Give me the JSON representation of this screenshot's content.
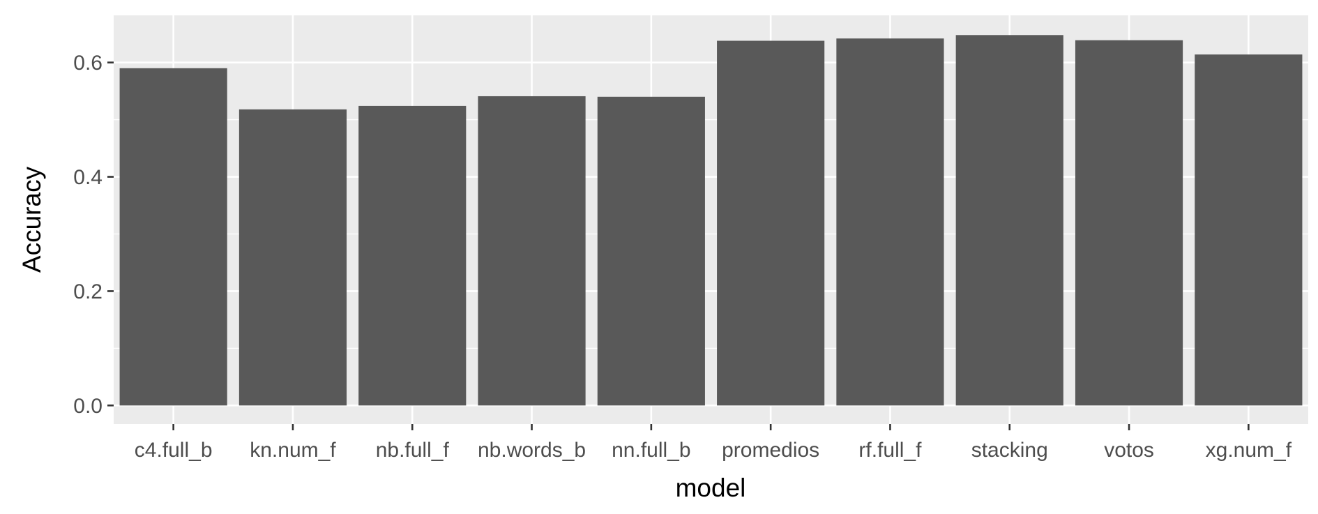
{
  "chart_data": {
    "type": "bar",
    "categories": [
      "c4.full_b",
      "kn.num_f",
      "nb.full_f",
      "nb.words_b",
      "nn.full_b",
      "promedios",
      "rf.full_f",
      "stacking",
      "votos",
      "xg.num_f"
    ],
    "values": [
      0.59,
      0.518,
      0.524,
      0.541,
      0.54,
      0.638,
      0.642,
      0.648,
      0.639,
      0.614
    ],
    "xlabel": "model",
    "ylabel": "Accuracy",
    "ylim": [
      -0.0325,
      0.6825
    ],
    "yticks": [
      0.0,
      0.2,
      0.4,
      0.6
    ],
    "ytick_labels": [
      "0.0",
      "0.2",
      "0.4",
      "0.6"
    ],
    "grid": true,
    "colors": {
      "panel": "#ebebeb",
      "grid_major": "#ffffff",
      "bar": "#595959",
      "tick_text": "#4d4d4d",
      "tick_mark": "#333333"
    }
  }
}
